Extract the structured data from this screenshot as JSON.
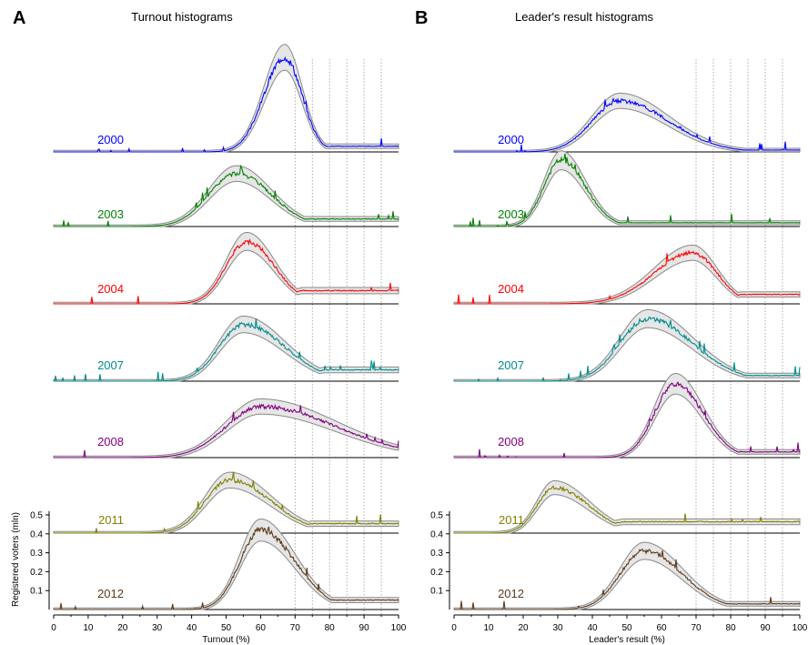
{
  "chart_data": [
    {
      "type": "line",
      "panel_letter": "A",
      "title": "Turnout histograms",
      "xlabel": "Turnout (%)",
      "ylabel": "Registered voters (mln)",
      "xlim": [
        0,
        100
      ],
      "xticks": [
        "0",
        "10",
        "20",
        "30",
        "40",
        "50",
        "60",
        "70",
        "80",
        "90",
        "100"
      ],
      "yticks": [
        "0.1",
        "0.2",
        "0.3",
        "0.4",
        "0.5"
      ],
      "reference_lines_x": [
        70,
        75,
        80,
        85,
        90,
        95
      ],
      "grid": false,
      "series": [
        {
          "name": "2000",
          "color": "#0000ff",
          "peak_x": 67,
          "peak_height_mln": 0.5,
          "spread_left": 6,
          "spread_right": 5,
          "tail": 0.03
        },
        {
          "name": "2003",
          "color": "#008000",
          "peak_x": 53,
          "peak_height_mln": 0.28,
          "spread_left": 8,
          "spread_right": 10,
          "tail": 0.04
        },
        {
          "name": "2004",
          "color": "#ff0000",
          "peak_x": 56,
          "peak_height_mln": 0.33,
          "spread_left": 6,
          "spread_right": 8,
          "tail": 0.07
        },
        {
          "name": "2007",
          "color": "#008b8b",
          "peak_x": 55,
          "peak_height_mln": 0.3,
          "spread_left": 7,
          "spread_right": 12,
          "tail": 0.06
        },
        {
          "name": "2008",
          "color": "#800080",
          "peak_x": 60,
          "peak_height_mln": 0.27,
          "spread_left": 10,
          "spread_right": 22,
          "tail": 0.06
        },
        {
          "name": "2011",
          "color": "#808000",
          "peak_x": 51,
          "peak_height_mln": 0.28,
          "spread_left": 7,
          "spread_right": 12,
          "tail": 0.05
        },
        {
          "name": "2012",
          "color": "#5c3a1a",
          "peak_x": 60,
          "peak_height_mln": 0.42,
          "spread_left": 6,
          "spread_right": 10,
          "tail": 0.05
        }
      ]
    },
    {
      "type": "line",
      "panel_letter": "B",
      "title": "Leader's result histograms",
      "xlabel": "Leader's result (%)",
      "ylabel": "",
      "xlim": [
        0,
        100
      ],
      "xticks": [
        "0",
        "10",
        "20",
        "30",
        "40",
        "50",
        "60",
        "70",
        "80",
        "90",
        "100"
      ],
      "yticks": [
        "0.1",
        "0.2",
        "0.3",
        "0.4",
        "0.5"
      ],
      "reference_lines_x": [
        70,
        75,
        80,
        85,
        90,
        95
      ],
      "grid": false,
      "series": [
        {
          "name": "2000",
          "color": "#0000ff",
          "peak_x": 48,
          "peak_height_mln": 0.27,
          "spread_left": 8,
          "spread_right": 14,
          "tail": 0.01
        },
        {
          "name": "2003",
          "color": "#008000",
          "peak_x": 31,
          "peak_height_mln": 0.35,
          "spread_left": 5,
          "spread_right": 7,
          "tail": 0.02
        },
        {
          "name": "2004",
          "color": "#ff0000",
          "peak_x": 69,
          "peak_height_mln": 0.27,
          "spread_left": 11,
          "spread_right": 7,
          "tail": 0.05
        },
        {
          "name": "2007",
          "color": "#008b8b",
          "peak_x": 56,
          "peak_height_mln": 0.33,
          "spread_left": 8,
          "spread_right": 13,
          "tail": 0.03
        },
        {
          "name": "2008",
          "color": "#800080",
          "peak_x": 64,
          "peak_height_mln": 0.39,
          "spread_left": 6,
          "spread_right": 8,
          "tail": 0.03
        },
        {
          "name": "2011",
          "color": "#808000",
          "peak_x": 29,
          "peak_height_mln": 0.24,
          "spread_left": 5,
          "spread_right": 10,
          "tail": 0.06
        },
        {
          "name": "2012",
          "color": "#5c3a1a",
          "peak_x": 55,
          "peak_height_mln": 0.31,
          "spread_left": 7,
          "spread_right": 11,
          "tail": 0.03
        }
      ]
    }
  ]
}
